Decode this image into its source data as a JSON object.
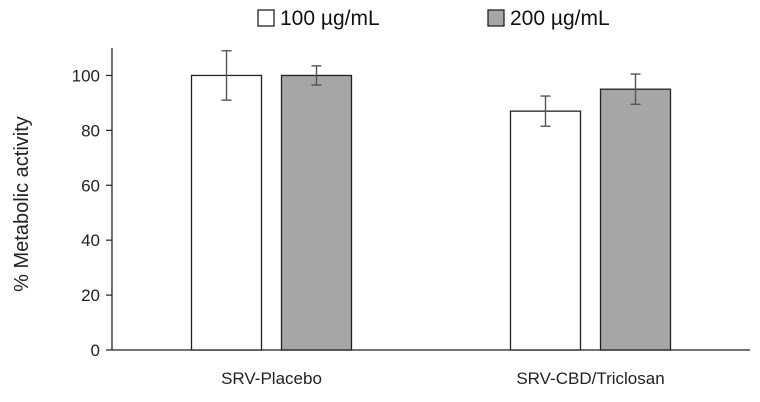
{
  "chart_data": {
    "type": "bar",
    "title": "",
    "xlabel": "",
    "ylabel": "% Metabolic activity",
    "categories": [
      "SRV-Placebo",
      "SRV-CBD/Triclosan"
    ],
    "series": [
      {
        "name": "100 µg/mL",
        "color": "#ffffff",
        "values": [
          100,
          87
        ],
        "errors": [
          9,
          5.5
        ]
      },
      {
        "name": "200 µg/mL",
        "color": "#a6a6a6",
        "values": [
          100,
          95
        ],
        "errors": [
          3.5,
          5.5
        ]
      }
    ],
    "ylim": [
      0,
      110
    ],
    "yticks": [
      0,
      20,
      40,
      60,
      80,
      100
    ],
    "grid": false,
    "legend_position": "top"
  }
}
